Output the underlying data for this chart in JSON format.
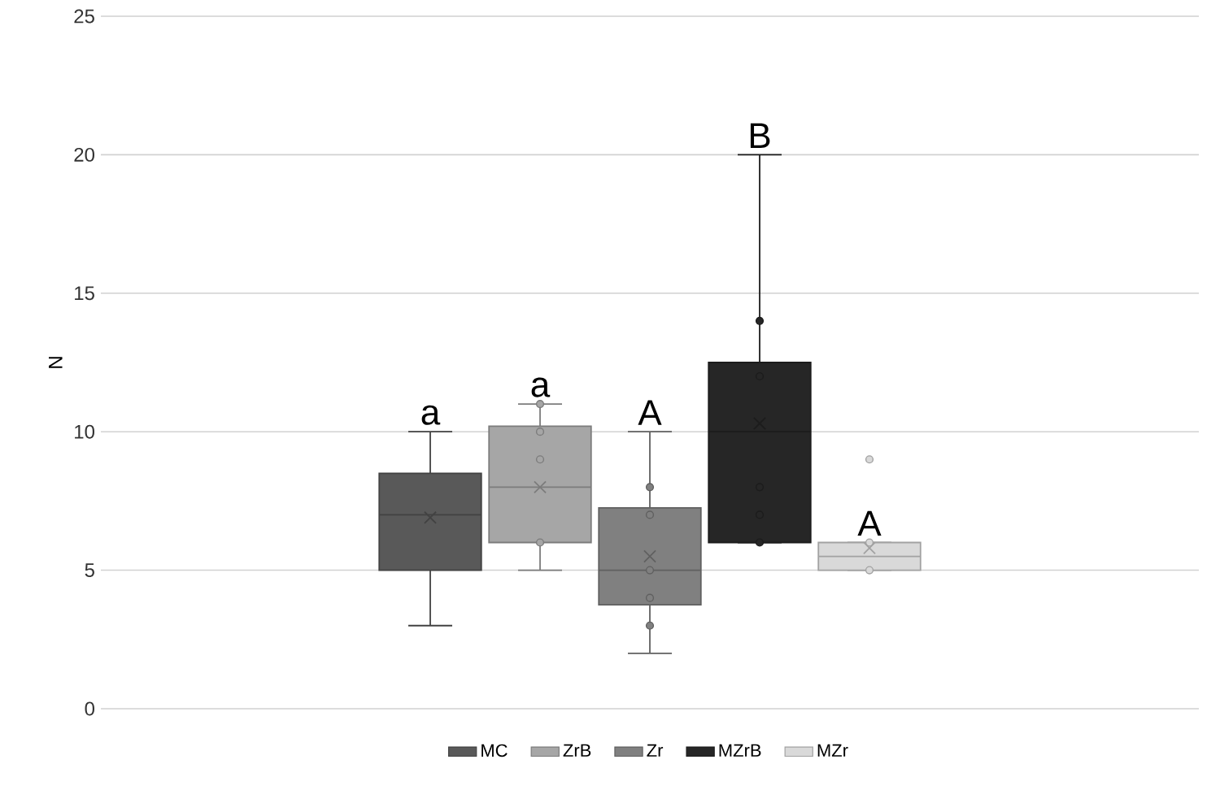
{
  "chart_data": {
    "type": "box",
    "ylabel": "N",
    "categories": [
      null
    ],
    "series": [
      {
        "name": "MC",
        "color": "#595959",
        "boxes": [
          {
            "low": 3,
            "q1": 5,
            "median": 7,
            "q3": 8.5,
            "high": 10,
            "mean": 6.9
          }
        ]
      },
      {
        "name": "ZrB",
        "color": "#a6a6a6",
        "boxes": [
          {
            "low": 5,
            "q1": 6,
            "median": 8,
            "q3": 10.2,
            "high": 11,
            "mean": 8,
            "outliers": [
              11,
              10,
              9,
              6
            ]
          }
        ]
      },
      {
        "name": "Zr",
        "color": "#808080",
        "boxes": [
          {
            "low": 2,
            "q1": 3.75,
            "median": 5,
            "q3": 7.25,
            "high": 10,
            "mean": 5.5,
            "outliers": [
              8,
              7,
              5,
              4,
              3
            ]
          }
        ]
      },
      {
        "name": "MZrB",
        "color": "#262626",
        "boxes": [
          {
            "low": 6,
            "q1": 6,
            "median": 10,
            "q3": 12.5,
            "high": 20,
            "mean": 10.3,
            "outliers": [
              14,
              12,
              8,
              7,
              6
            ]
          }
        ]
      },
      {
        "name": "MZr",
        "color": "#d9d9d9",
        "boxes": [
          {
            "low": 5,
            "q1": 5,
            "median": 5.5,
            "q3": 6,
            "high": 6,
            "mean": 5.8,
            "outliers": [
              9,
              6,
              5
            ]
          }
        ]
      }
    ],
    "ylim": [
      0,
      25
    ],
    "yticks": [
      0,
      5,
      10,
      15,
      20,
      25
    ],
    "grid": "y",
    "legend": "bottom",
    "annotations": [
      "a",
      "a",
      "A",
      "B",
      "A"
    ]
  }
}
